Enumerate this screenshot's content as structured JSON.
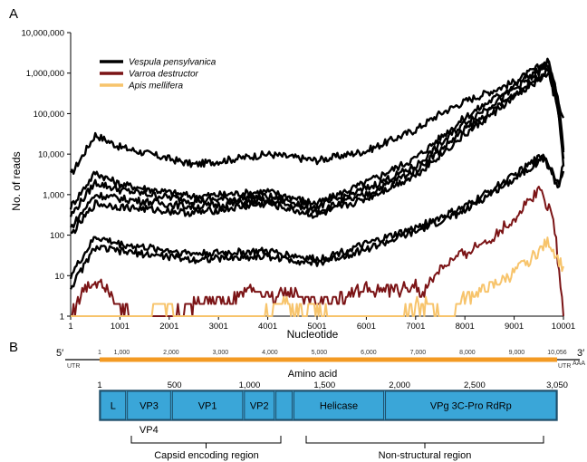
{
  "figure": {
    "panel_a_label": "A",
    "panel_b_label": "B"
  },
  "chart_data": [
    {
      "type": "line",
      "xlabel": "Nucleotide",
      "ylabel": "No. of reads",
      "yscale": "log",
      "xlim": [
        1,
        10001
      ],
      "ylim": [
        1,
        10000000
      ],
      "x_ticks": [
        "1",
        "1001",
        "2001",
        "3001",
        "4001",
        "5001",
        "6001",
        "7001",
        "8001",
        "9001",
        "10001"
      ],
      "y_ticks": [
        "1",
        "10",
        "100",
        "1,000",
        "10,000",
        "100,000",
        "1,000,000",
        "10,000,000"
      ],
      "grid": false,
      "legend_position": "top-left",
      "legend": [
        {
          "name": "Vespula pensylvanica",
          "color": "#000000"
        },
        {
          "name": "Varroa destructor",
          "color": "#7b1416"
        },
        {
          "name": "Apis mellifera",
          "color": "#f7c46c"
        }
      ],
      "series": [
        {
          "name": "Vespula pensylvanica",
          "color": "#000000",
          "x": [
            1,
            500,
            1000,
            2500,
            4000,
            5000,
            6000,
            7000,
            7500,
            8000,
            9000,
            9700,
            9900,
            10001
          ],
          "y": [
            3000,
            30000,
            15000,
            5500,
            10000,
            7000,
            12000,
            40000,
            100000,
            200000,
            600000,
            2000000,
            200000,
            80000
          ]
        },
        {
          "name": "Vespula pensylvanica",
          "color": "#000000",
          "x": [
            1,
            500,
            1000,
            2500,
            4000,
            5000,
            6000,
            7000,
            8000,
            9000,
            9700,
            9900,
            10001
          ],
          "y": [
            500,
            3500,
            1800,
            900,
            1200,
            600,
            2000,
            8000,
            80000,
            500000,
            1800000,
            200000,
            15000
          ]
        },
        {
          "name": "Vespula pensylvanica",
          "color": "#000000",
          "x": [
            1,
            500,
            1000,
            2500,
            4000,
            5000,
            6000,
            7000,
            8000,
            9000,
            9700,
            9900,
            10001
          ],
          "y": [
            300,
            2000,
            1300,
            700,
            900,
            500,
            1400,
            5000,
            60000,
            400000,
            1500000,
            150000,
            10000
          ]
        },
        {
          "name": "Vespula pensylvanica",
          "color": "#000000",
          "x": [
            1,
            500,
            1000,
            2500,
            4000,
            5000,
            6000,
            7000,
            8000,
            9000,
            9700,
            9900,
            10001
          ],
          "y": [
            150,
            1000,
            800,
            500,
            700,
            400,
            1000,
            4000,
            40000,
            300000,
            1200000,
            120000,
            8000
          ]
        },
        {
          "name": "Vespula pensylvanica",
          "color": "#000000",
          "x": [
            1,
            500,
            1000,
            2500,
            4000,
            5000,
            6000,
            7000,
            8000,
            9000,
            9700,
            9900,
            10001
          ],
          "y": [
            100,
            600,
            500,
            350,
            600,
            300,
            800,
            3000,
            30000,
            250000,
            1000000,
            100000,
            6000
          ]
        },
        {
          "name": "Vespula pensylvanica",
          "color": "#000000",
          "x": [
            1,
            500,
            1000,
            2500,
            4000,
            5000,
            6000,
            7000,
            8000,
            9000,
            9600,
            9900,
            10001
          ],
          "y": [
            10,
            90,
            60,
            35,
            40,
            25,
            60,
            150,
            500,
            3000,
            10000,
            2000,
            5000
          ]
        },
        {
          "name": "Vespula pensylvanica",
          "color": "#000000",
          "x": [
            1,
            500,
            1000,
            2500,
            4000,
            5000,
            6000,
            7000,
            8000,
            9000,
            9600,
            9900,
            10001
          ],
          "y": [
            5,
            50,
            40,
            25,
            30,
            20,
            45,
            120,
            400,
            2500,
            8000,
            1500,
            4000
          ]
        },
        {
          "name": "Varroa destructor",
          "color": "#7b1416",
          "x": [
            1,
            300,
            600,
            900,
            1200,
            2000,
            2800,
            3200,
            3600,
            4000,
            4500,
            5000,
            5500,
            6000,
            6500,
            7000,
            7100,
            7500,
            8000,
            8500,
            9000,
            9500,
            9800,
            10001
          ],
          "y": [
            1,
            5,
            8,
            3,
            1,
            1,
            3,
            2,
            5,
            3,
            4,
            2,
            3,
            5,
            4,
            6,
            3,
            15,
            35,
            80,
            250,
            1400,
            300,
            1
          ]
        },
        {
          "name": "Apis mellifera",
          "color": "#f7c46c",
          "x": [
            1,
            1500,
            1800,
            2200,
            3000,
            3900,
            4200,
            5500,
            6200,
            7200,
            7700,
            8000,
            8500,
            9000,
            9500,
            9700,
            10001
          ],
          "y": [
            1,
            1,
            2,
            1,
            1,
            1,
            2,
            1,
            1,
            2,
            1,
            3,
            5,
            12,
            40,
            70,
            15
          ]
        }
      ]
    },
    {
      "type": "diagram",
      "five_prime": "5′",
      "three_prime": "3′",
      "utr_left": "UTR",
      "utr_right": "UTR",
      "poly_a": "AAA",
      "genome_label": "Amino acid",
      "nt_ticks": [
        "1",
        "1,000",
        "2,000",
        "3,000",
        "4,000",
        "5,000",
        "6,000",
        "7,000",
        "8,000",
        "9,000",
        "10,056"
      ],
      "aa_ticks": [
        "1",
        "500",
        "1,000",
        "1,500",
        "2,000",
        "2,500",
        "3,050"
      ],
      "polyprotein_color": "#3aa6d8",
      "orf_color": "#f39a23",
      "domains": [
        {
          "label": "L"
        },
        {
          "label": "VP3"
        },
        {
          "label": "VP1"
        },
        {
          "label": "VP2"
        },
        {
          "label": ""
        },
        {
          "label": "Helicase"
        },
        {
          "label": "VPg      3C-Pro   RdRp"
        }
      ],
      "vp4_label": "VP4",
      "regions": [
        {
          "label": "Capsid encoding region"
        },
        {
          "label": "Non-structural region"
        }
      ]
    }
  ]
}
